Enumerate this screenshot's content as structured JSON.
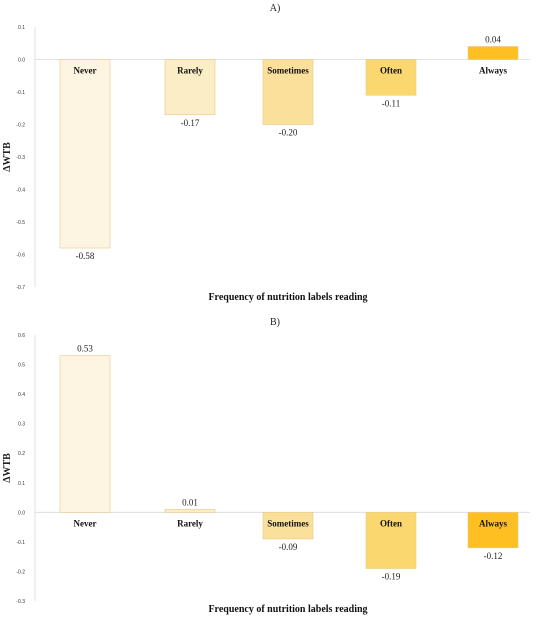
{
  "chart_data": [
    {
      "type": "bar",
      "title": "A)",
      "ylabel": "ΔWTB",
      "xlabel": "Frequency of nutrition labels reading",
      "categories": [
        "Never",
        "Rarely",
        "Sometimes",
        "Often",
        "Always"
      ],
      "values": [
        -0.58,
        -0.17,
        -0.2,
        -0.11,
        0.04
      ],
      "value_labels": [
        "-0.58",
        "-0.17",
        "-0.20",
        "-0.11",
        "0.04"
      ],
      "ylim": [
        -0.7,
        0.1
      ],
      "yticks": [
        "0.1",
        "0.0",
        "-0.1",
        "-0.2",
        "-0.3",
        "-0.4",
        "-0.5",
        "-0.6",
        "-0.7"
      ],
      "colors": [
        "#fdf5e1",
        "#fbeec6",
        "#fbe09c",
        "#fbd86f",
        "#fdbf22"
      ],
      "grid": false
    },
    {
      "type": "bar",
      "title": "B)",
      "ylabel": "ΔWTB",
      "xlabel": "Frequency of nutrition labels reading",
      "categories": [
        "Never",
        "Rarely",
        "Sometimes",
        "Often",
        "Always"
      ],
      "values": [
        0.53,
        0.01,
        -0.09,
        -0.19,
        -0.12
      ],
      "value_labels": [
        "0.53",
        "0.01",
        "-0.09",
        "-0.19",
        "-0.12"
      ],
      "ylim": [
        -0.3,
        0.6
      ],
      "yticks": [
        "0.6",
        "0.5",
        "0.4",
        "0.3",
        "0.2",
        "0.1",
        "0.0",
        "-0.1",
        "-0.2",
        "-0.3"
      ],
      "colors": [
        "#fdf5e1",
        "#fbeec6",
        "#fbe09c",
        "#fbd86f",
        "#fdbf22"
      ],
      "grid": false
    }
  ]
}
